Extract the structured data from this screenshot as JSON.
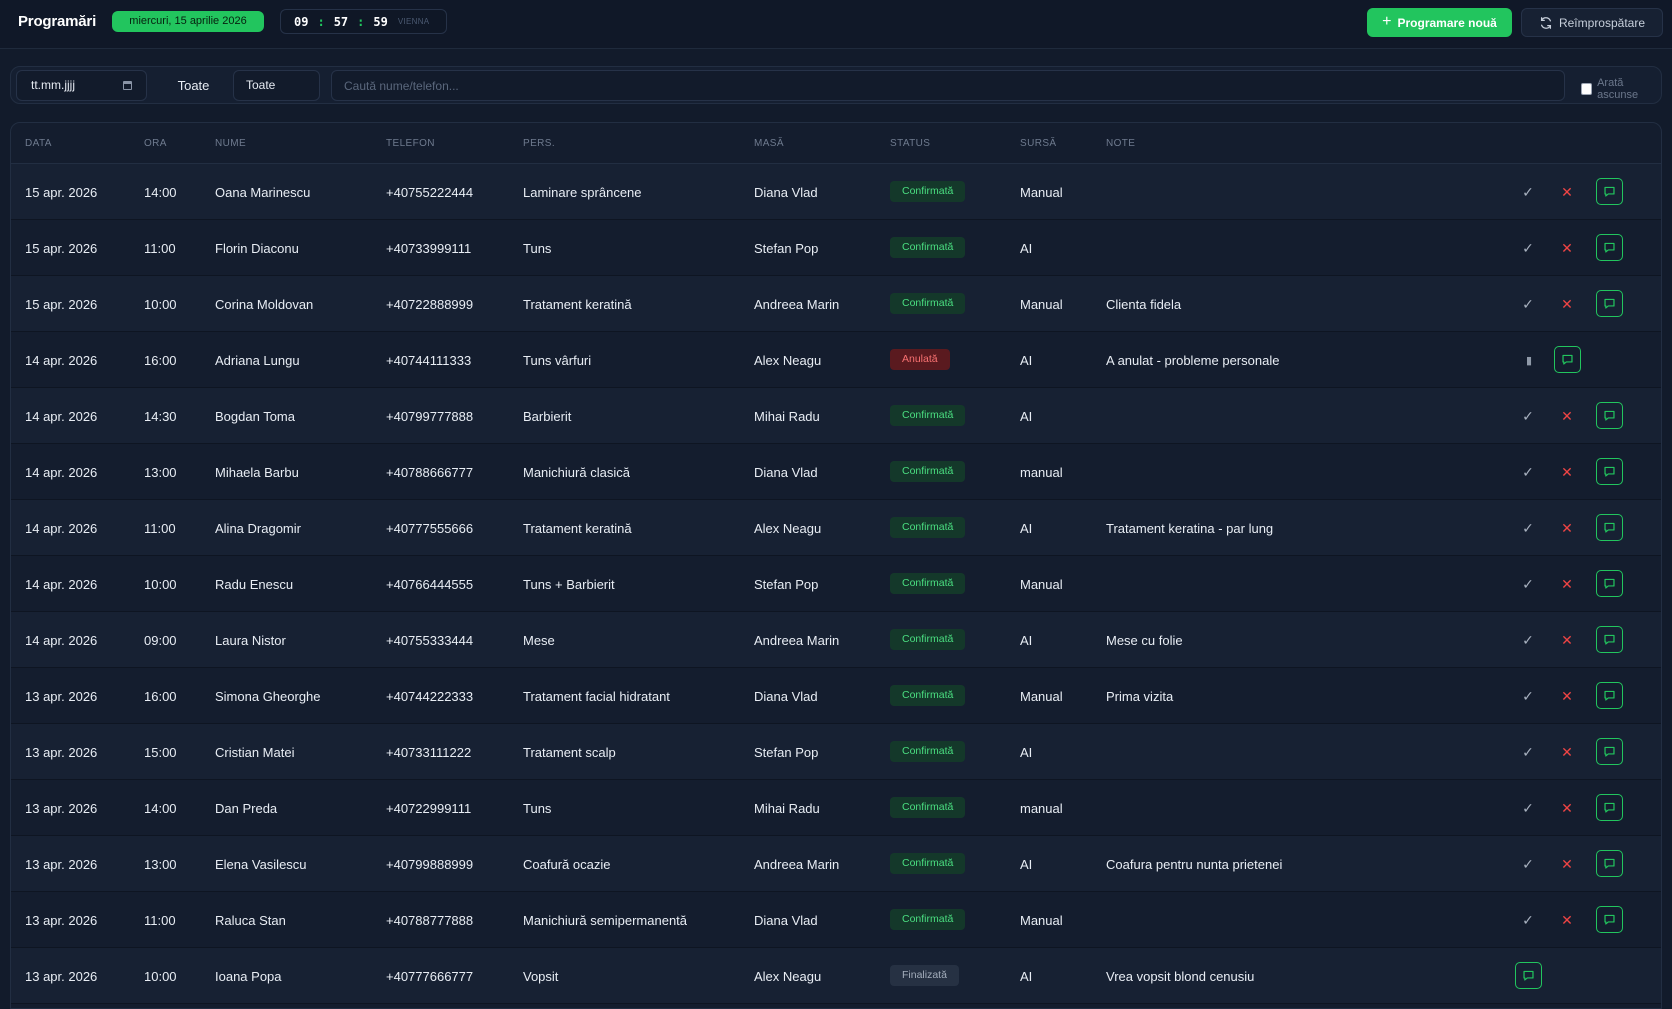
{
  "header": {
    "title": "Programări",
    "date": "miercuri, 15 aprilie 2026",
    "clock": {
      "h": "09",
      "m": "57",
      "s": "59",
      "tz": "VIENNA"
    },
    "new_button": "Programare nouă",
    "refresh_button": "Reîmprospătare"
  },
  "filters": {
    "date_placeholder": "tt.mm.jjjj",
    "select1": "Toate",
    "select2": "Toate",
    "search_placeholder": "Caută nume/telefon...",
    "show_hidden": "Arată ascunse"
  },
  "columns": [
    "DATA",
    "ORA",
    "NUME",
    "TELEFON",
    "PERS.",
    "MASĂ",
    "STATUS",
    "SURSĂ",
    "NOTE"
  ],
  "rows": [
    {
      "data": "15 apr. 2026",
      "ora": "14:00",
      "nume": "Oana Marinescu",
      "telefon": "+40755222444",
      "pers": "Laminare sprâncene",
      "masa": "Diana Vlad",
      "status": "Confirmată",
      "sursa": "Manual",
      "note": "",
      "kind": "confirmed"
    },
    {
      "data": "15 apr. 2026",
      "ora": "11:00",
      "nume": "Florin Diaconu",
      "telefon": "+40733999111",
      "pers": "Tuns",
      "masa": "Stefan Pop",
      "status": "Confirmată",
      "sursa": "AI",
      "note": "",
      "kind": "confirmed"
    },
    {
      "data": "15 apr. 2026",
      "ora": "10:00",
      "nume": "Corina Moldovan",
      "telefon": "+40722888999",
      "pers": "Tratament keratină",
      "masa": "Andreea Marin",
      "status": "Confirmată",
      "sursa": "Manual",
      "note": "Clienta fidela",
      "kind": "confirmed"
    },
    {
      "data": "14 apr. 2026",
      "ora": "16:00",
      "nume": "Adriana Lungu",
      "telefon": "+40744111333",
      "pers": "Tuns vârfuri",
      "masa": "Alex Neagu",
      "status": "Anulată",
      "sursa": "AI",
      "note": "A anulat - probleme personale",
      "kind": "cancelled"
    },
    {
      "data": "14 apr. 2026",
      "ora": "14:30",
      "nume": "Bogdan Toma",
      "telefon": "+40799777888",
      "pers": "Barbierit",
      "masa": "Mihai Radu",
      "status": "Confirmată",
      "sursa": "AI",
      "note": "",
      "kind": "confirmed"
    },
    {
      "data": "14 apr. 2026",
      "ora": "13:00",
      "nume": "Mihaela Barbu",
      "telefon": "+40788666777",
      "pers": "Manichiură clasică",
      "masa": "Diana Vlad",
      "status": "Confirmată",
      "sursa": "manual",
      "note": "",
      "kind": "confirmed"
    },
    {
      "data": "14 apr. 2026",
      "ora": "11:00",
      "nume": "Alina Dragomir",
      "telefon": "+40777555666",
      "pers": "Tratament keratină",
      "masa": "Alex Neagu",
      "status": "Confirmată",
      "sursa": "AI",
      "note": "Tratament keratina - par lung",
      "kind": "confirmed"
    },
    {
      "data": "14 apr. 2026",
      "ora": "10:00",
      "nume": "Radu Enescu",
      "telefon": "+40766444555",
      "pers": "Tuns + Barbierit",
      "masa": "Stefan Pop",
      "status": "Confirmată",
      "sursa": "Manual",
      "note": "",
      "kind": "confirmed"
    },
    {
      "data": "14 apr. 2026",
      "ora": "09:00",
      "nume": "Laura Nistor",
      "telefon": "+40755333444",
      "pers": "Mese",
      "masa": "Andreea Marin",
      "status": "Confirmată",
      "sursa": "AI",
      "note": "Mese cu folie",
      "kind": "confirmed"
    },
    {
      "data": "13 apr. 2026",
      "ora": "16:00",
      "nume": "Simona Gheorghe",
      "telefon": "+40744222333",
      "pers": "Tratament facial hidratant",
      "masa": "Diana Vlad",
      "status": "Confirmată",
      "sursa": "Manual",
      "note": "Prima vizita",
      "kind": "confirmed"
    },
    {
      "data": "13 apr. 2026",
      "ora": "15:00",
      "nume": "Cristian Matei",
      "telefon": "+40733111222",
      "pers": "Tratament scalp",
      "masa": "Stefan Pop",
      "status": "Confirmată",
      "sursa": "AI",
      "note": "",
      "kind": "confirmed"
    },
    {
      "data": "13 apr. 2026",
      "ora": "14:00",
      "nume": "Dan Preda",
      "telefon": "+40722999111",
      "pers": "Tuns",
      "masa": "Mihai Radu",
      "status": "Confirmată",
      "sursa": "manual",
      "note": "",
      "kind": "confirmed"
    },
    {
      "data": "13 apr. 2026",
      "ora": "13:00",
      "nume": "Elena Vasilescu",
      "telefon": "+40799888999",
      "pers": "Coafură ocazie",
      "masa": "Andreea Marin",
      "status": "Confirmată",
      "sursa": "AI",
      "note": "Coafura pentru nunta prietenei",
      "kind": "confirmed"
    },
    {
      "data": "13 apr. 2026",
      "ora": "11:00",
      "nume": "Raluca Stan",
      "telefon": "+40788777888",
      "pers": "Manichiură semipermanentă",
      "masa": "Diana Vlad",
      "status": "Confirmată",
      "sursa": "Manual",
      "note": "",
      "kind": "confirmed"
    },
    {
      "data": "13 apr. 2026",
      "ora": "10:00",
      "nume": "Ioana Popa",
      "telefon": "+40777666777",
      "pers": "Vopsit",
      "masa": "Alex Neagu",
      "status": "Finalizată",
      "sursa": "AI",
      "note": "Vrea vopsit blond cenusiu",
      "kind": "done"
    }
  ]
}
